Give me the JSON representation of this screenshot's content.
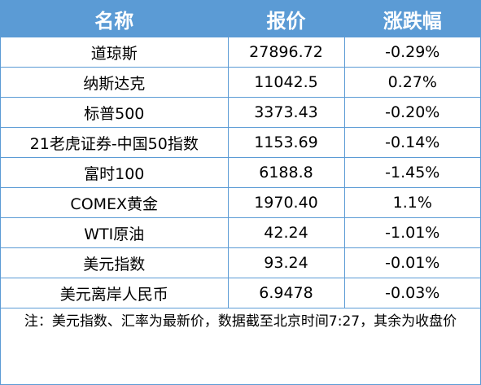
{
  "headers": [
    "名称",
    "报价",
    "涨跌幅"
  ],
  "rows": [
    {
      "name": "道琼斯",
      "price": "27896.72",
      "change": "-0.29%"
    },
    {
      "name": "纳斯达克",
      "price": "11042.5",
      "change": "0.27%"
    },
    {
      "name": "标普500",
      "price": "3373.43",
      "change": "-0.20%"
    },
    {
      "name": "21老虎证券-中国50指数",
      "price": "1153.69",
      "change": "-0.14%"
    },
    {
      "name": "富时100",
      "price": "6188.8",
      "change": "-1.45%"
    },
    {
      "name": "COMEX黄金",
      "price": "1970.40",
      "change": "1.1%"
    },
    {
      "name": "WTI原油",
      "price": "42.24",
      "change": "-1.01%"
    },
    {
      "name": "美元指数",
      "price": "93.24",
      "change": "-0.01%"
    },
    {
      "name": "美元离岸人民币",
      "price": "6.9478",
      "change": "-0.03%"
    }
  ],
  "note": "注：美元指数、汇率为最新价，数据截至北京时间7:27，其余为收盘价",
  "colors": {
    "header_bg": "#5b9bd5",
    "border": "#5b9bd5",
    "header_text": "#ffffff"
  }
}
